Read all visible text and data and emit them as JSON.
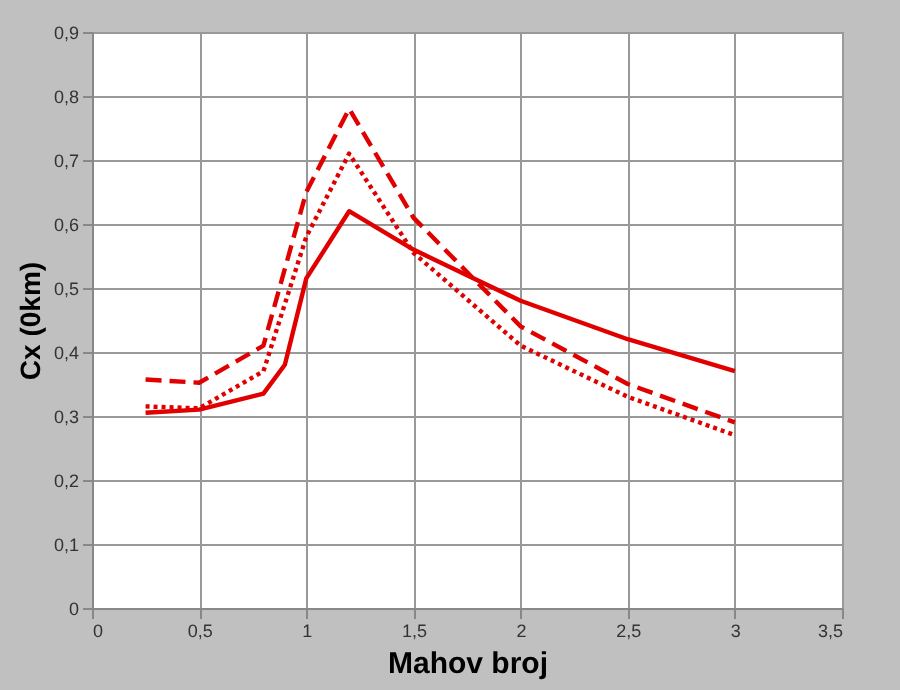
{
  "chart_data": {
    "type": "line",
    "xlabel": "Mahov broj",
    "ylabel": "Cx (0km)",
    "xlim": [
      0,
      3.5
    ],
    "ylim": [
      0,
      0.9
    ],
    "xticks": [
      0,
      {
        "value": 0.5,
        "label": "0,5"
      },
      1,
      {
        "value": 1.5,
        "label": "1,5"
      },
      2,
      {
        "value": 2.5,
        "label": "2,5"
      },
      3,
      {
        "value": 3.5,
        "label": "3,5"
      }
    ],
    "yticks": [
      0,
      {
        "value": 0.1,
        "label": "0,1"
      },
      {
        "value": 0.2,
        "label": "0,2"
      },
      {
        "value": 0.3,
        "label": "0,3"
      },
      {
        "value": 0.4,
        "label": "0,4"
      },
      {
        "value": 0.5,
        "label": "0,5"
      },
      {
        "value": 0.6,
        "label": "0,6"
      },
      {
        "value": 0.7,
        "label": "0,7"
      },
      {
        "value": 0.8,
        "label": "0,8"
      },
      {
        "value": 0.9,
        "label": "0,9"
      }
    ],
    "grid": true,
    "marker": "none",
    "series": [
      {
        "color": "#e00000",
        "line_style": "solid",
        "x": [
          0.25,
          0.5,
          0.8,
          0.9,
          1.0,
          1.2,
          1.5,
          1.75,
          2.0,
          2.5,
          3.0
        ],
        "values": [
          0.305,
          0.31,
          0.335,
          0.38,
          0.515,
          0.62,
          0.56,
          0.52,
          0.48,
          0.42,
          0.37
        ]
      },
      {
        "color": "#e00000",
        "line_style": "dashed",
        "x": [
          0.25,
          0.5,
          0.8,
          1.0,
          1.2,
          1.5,
          2.0,
          2.5,
          3.0
        ],
        "values": [
          0.357,
          0.352,
          0.41,
          0.65,
          0.78,
          0.61,
          0.44,
          0.35,
          0.29
        ]
      },
      {
        "color": "#e00000",
        "line_style": "dotted",
        "x": [
          0.25,
          0.5,
          0.8,
          1.0,
          1.2,
          1.5,
          2.0,
          2.5,
          3.0
        ],
        "values": [
          0.315,
          0.312,
          0.37,
          0.58,
          0.71,
          0.555,
          0.41,
          0.33,
          0.27
        ]
      }
    ]
  }
}
